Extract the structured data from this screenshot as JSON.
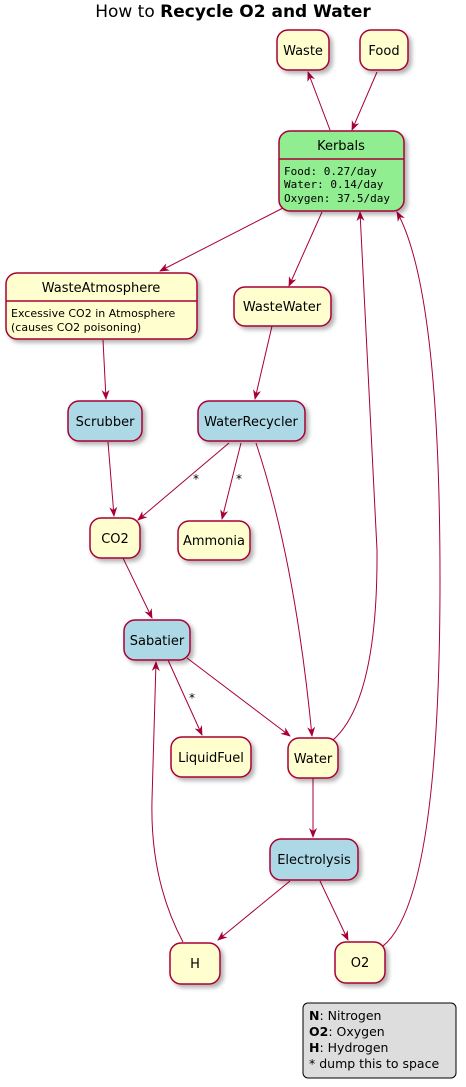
{
  "title": {
    "prefix": "How to ",
    "bold": "Recycle O2 and Water"
  },
  "colors": {
    "state": "#FEFECE",
    "process": "#ADD8E6",
    "kerbals": "#90EE90",
    "edge": "#A80036",
    "legend": "#DDDDDD"
  },
  "nodes": {
    "waste": "Waste",
    "food": "Food",
    "kerbals": "Kerbals",
    "kerbals_food": "Food: 0.27/day",
    "kerbals_water": "Water: 0.14/day",
    "kerbals_oxygen": "Oxygen: 37.5/day",
    "waste_atmosphere": "WasteAtmosphere",
    "waste_atmosphere_desc1": "Excessive CO2 in Atmosphere",
    "waste_atmosphere_desc2": "(causes CO2 poisoning)",
    "waste_water": "WasteWater",
    "scrubber": "Scrubber",
    "water_recycler": "WaterRecycler",
    "co2": "CO2",
    "ammonia": "Ammonia",
    "sabatier": "Sabatier",
    "liquid_fuel": "LiquidFuel",
    "water": "Water",
    "electrolysis": "Electrolysis",
    "h": "H",
    "o2": "O2"
  },
  "edge_labels": {
    "dump": "*"
  },
  "legend": {
    "n_key": "N",
    "n_val": ": Nitrogen",
    "o2_key": "O2",
    "o2_val": ": Oxygen",
    "h_key": "H",
    "h_val": ": Hydrogen",
    "dump_note": "* dump this to space"
  }
}
